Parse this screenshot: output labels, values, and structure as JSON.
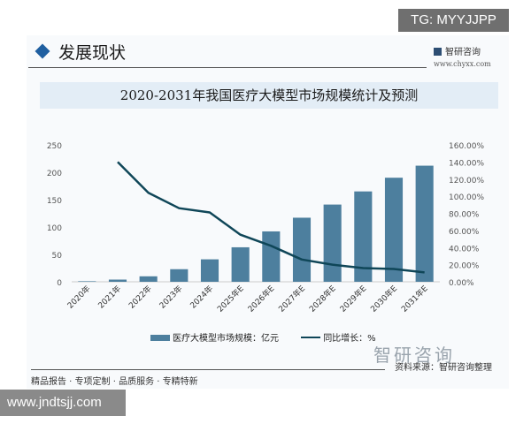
{
  "header": {
    "section_title": "发展现状",
    "brand": "智研咨询",
    "brand_url": "www.chyxx.com",
    "watermark_tag": "TG: MYYJJPP"
  },
  "footer": {
    "slogan": "精品报告 · 专项定制 · 品质服务 · 专精特新",
    "source": "资料来源：智研咨询整理",
    "logo_text": "智研咨询",
    "site": "www.jndtsjj.com"
  },
  "chart_data": {
    "type": "bar+line",
    "title": "2020-2031年我国医疗大模型市场规模统计及预测",
    "categories": [
      "2020年",
      "2021年",
      "2022年",
      "2023年",
      "2024年",
      "2025年E",
      "2026年E",
      "2027年E",
      "2028年E",
      "2029年E",
      "2030年E",
      "2031年E"
    ],
    "series": [
      {
        "name": "医疗大模型市场规模：亿元",
        "type": "bar",
        "axis": "left",
        "color": "#4d7f9e",
        "values": [
          1,
          4,
          10,
          23,
          41,
          63,
          92,
          117,
          141,
          165,
          190,
          212
        ]
      },
      {
        "name": "同比增长：%",
        "type": "line",
        "axis": "right",
        "color": "#0f4658",
        "values": [
          null,
          140,
          104,
          86,
          81,
          55,
          42,
          26,
          20,
          16,
          15,
          11
        ]
      }
    ],
    "left_axis": {
      "ylim": [
        0,
        250
      ],
      "ticks": [
        "0",
        "50",
        "100",
        "150",
        "200",
        "250"
      ]
    },
    "right_axis": {
      "ylim": [
        0,
        160
      ],
      "ticks": [
        "0.00%",
        "20.00%",
        "40.00%",
        "60.00%",
        "80.00%",
        "100.00%",
        "120.00%",
        "140.00%",
        "160.00%"
      ]
    },
    "grid": false,
    "legend": "bottom"
  }
}
